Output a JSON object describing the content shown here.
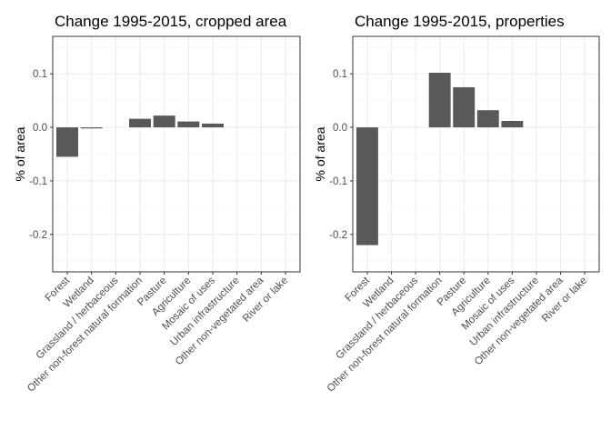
{
  "chart_data": [
    {
      "type": "bar",
      "title": "Change 1995-2015, cropped area",
      "xlabel": "",
      "ylabel": "% of area",
      "ylim": [
        -0.27,
        0.17
      ],
      "yticks": [
        -0.2,
        -0.1,
        0.0,
        0.1
      ],
      "ytick_labels": [
        "-0.2",
        "-0.1",
        "0.0",
        "0.1"
      ],
      "grid": true,
      "categories": [
        "Forest",
        "Wetland",
        "Grassland / herbaceous",
        "Other non-forest natural formation",
        "Pasture",
        "Agriculture",
        "Mosaic of uses",
        "Urban infrastructure",
        "Other non-vegetated area",
        "River or lake"
      ],
      "values": [
        -0.055,
        -0.002,
        0.0,
        0.016,
        0.022,
        0.011,
        0.007,
        0.0,
        0.0,
        0.0
      ],
      "bar_color": "#595959"
    },
    {
      "type": "bar",
      "title": "Change 1995-2015, properties",
      "xlabel": "",
      "ylabel": "% of area",
      "ylim": [
        -0.27,
        0.17
      ],
      "yticks": [
        -0.2,
        -0.1,
        0.0,
        0.1
      ],
      "ytick_labels": [
        "-0.2",
        "-0.1",
        "0.0",
        "0.1"
      ],
      "grid": true,
      "categories": [
        "Forest",
        "Wetland",
        "Grassland / herbaceous",
        "Other non-forest natural formation",
        "Pasture",
        "Agriculture",
        "Mosaic of uses",
        "Urban infrastructure",
        "Other non-vegetated area",
        "River or lake"
      ],
      "values": [
        -0.22,
        0.0,
        0.0,
        0.102,
        0.075,
        0.032,
        0.012,
        0.0,
        0.0,
        0.0
      ],
      "bar_color": "#595959"
    }
  ]
}
